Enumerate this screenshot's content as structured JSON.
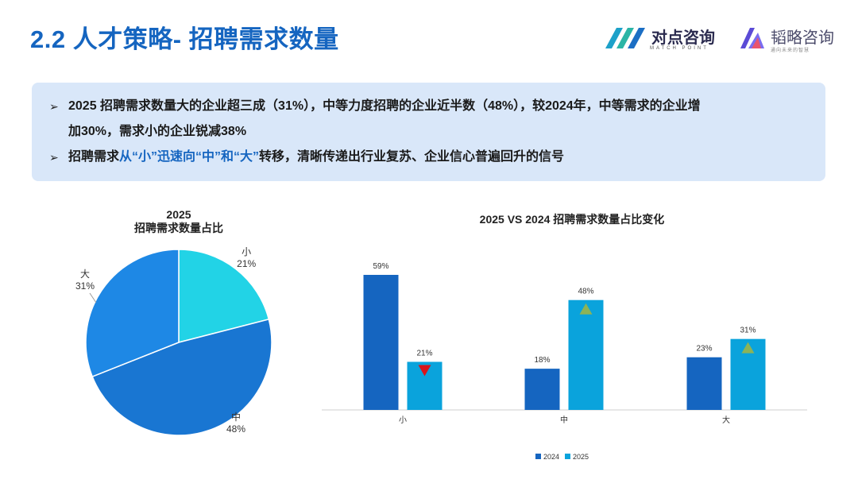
{
  "page": {
    "title": "2.2 人才策略- 招聘需求数量"
  },
  "logos": {
    "logo1_name": "对点咨询",
    "logo1_sub": "MATCH POINT",
    "logo2_name": "韬略咨询",
    "logo2_sub": "通向未来的智慧"
  },
  "summary": {
    "bullet1_line1": "2025 招聘需求数量大的企业超三成（31%），中等力度招聘的企业近半数（48%），较2024年，中等需求的企业增",
    "bullet1_line2": "加30%，需求小的企业锐减38%",
    "bullet2_prefix": "招聘需求",
    "bullet2_highlight": "从“小”迅速向“中”和“大”",
    "bullet2_suffix": "转移，清晰传递出行业复苏、企业信心普遍回升的信号"
  },
  "colors": {
    "small": "#22d3e6",
    "medium": "#1976d2",
    "large": "#1e88e5",
    "series_2024": "#1565c0",
    "series_2025": "#0aa3dc",
    "down_marker": "#d9141b",
    "up_marker": "#8cb358"
  },
  "chart_data": [
    {
      "type": "pie",
      "title": "2025",
      "subtitle": "招聘需求数量占比",
      "slices": [
        {
          "label": "小",
          "value": 21,
          "value_label": "21%"
        },
        {
          "label": "中",
          "value": 48,
          "value_label": "48%"
        },
        {
          "label": "大",
          "value": 31,
          "value_label": "31%"
        }
      ]
    },
    {
      "type": "bar",
      "title": "2025 VS 2024 招聘需求数量占比变化",
      "categories": [
        "小",
        "中",
        "大"
      ],
      "series": [
        {
          "name": "2024",
          "values": [
            59,
            18,
            23
          ],
          "value_labels": [
            "59%",
            "18%",
            "23%"
          ]
        },
        {
          "name": "2025",
          "values": [
            21,
            48,
            31
          ],
          "value_labels": [
            "21%",
            "48%",
            "31%"
          ]
        }
      ],
      "change_markers": [
        "down",
        "up",
        "up"
      ],
      "ylim": [
        0,
        60
      ],
      "legend": "bottom"
    }
  ]
}
